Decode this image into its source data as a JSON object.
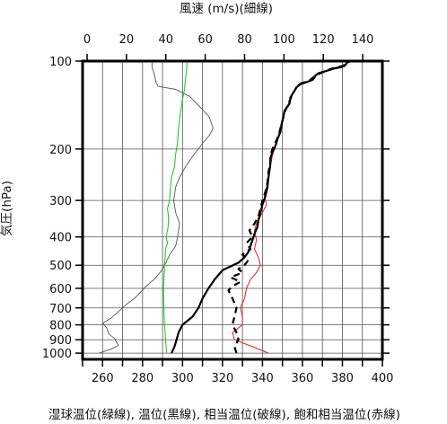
{
  "chart_data": {
    "type": "line",
    "top_axis_title": "風速 (m/s)(細線)",
    "left_axis_title": "気圧(hPa)",
    "bottom_axis_title": "湿球温位(緑線), 温位(黒線), 相当温位(破線), 飽和相当温位(赤線)",
    "y_axis": {
      "scale": "log",
      "range": [
        1050,
        100
      ],
      "ticks": [
        100,
        200,
        300,
        400,
        500,
        600,
        700,
        800,
        900,
        1000
      ]
    },
    "bottom_axis": {
      "range": [
        250,
        400
      ],
      "ticks": [
        260,
        280,
        300,
        320,
        340,
        360,
        380,
        400
      ],
      "grid_step": 10
    },
    "top_axis": {
      "range": [
        -2.3,
        150
      ],
      "ticks": [
        0,
        20,
        40,
        60,
        80,
        100,
        120,
        140
      ],
      "grid": false
    },
    "colors": {
      "wet_bulb_pt": "#22cc22",
      "pt": "#000000",
      "ept": "#000000",
      "sept": "#e02020",
      "wind": "#555555",
      "grid": "#555555"
    },
    "series": [
      {
        "id": "wet_bulb_pt",
        "axis": "bottom",
        "style": "solid",
        "points": [
          [
            292.0,
            1000
          ],
          [
            291.8,
            950
          ],
          [
            291.5,
            900
          ],
          [
            291.3,
            850
          ],
          [
            291.0,
            800
          ],
          [
            290.8,
            750
          ],
          [
            290.7,
            700
          ],
          [
            290.6,
            650
          ],
          [
            290.5,
            600
          ],
          [
            290.7,
            560
          ],
          [
            290.8,
            540
          ],
          [
            291.0,
            520
          ],
          [
            290.9,
            500
          ],
          [
            291.3,
            470
          ],
          [
            291.5,
            440
          ],
          [
            292.5,
            420
          ],
          [
            291.8,
            400
          ],
          [
            292.8,
            370
          ],
          [
            293.0,
            340
          ],
          [
            292.5,
            320
          ],
          [
            293.5,
            300
          ],
          [
            294.0,
            270
          ],
          [
            294.5,
            250
          ],
          [
            296.0,
            230
          ],
          [
            296.5,
            210
          ],
          [
            297.5,
            190
          ],
          [
            298.0,
            170
          ],
          [
            299.0,
            150
          ],
          [
            300.0,
            135
          ],
          [
            301.0,
            125
          ],
          [
            301.5,
            115
          ],
          [
            302.0,
            108
          ],
          [
            302.3,
            100
          ]
        ]
      },
      {
        "id": "pt",
        "axis": "bottom",
        "style": "solid",
        "points": [
          [
            294.5,
            1000
          ],
          [
            296,
            950
          ],
          [
            297,
            900
          ],
          [
            298,
            850
          ],
          [
            300,
            800
          ],
          [
            305,
            750
          ],
          [
            308,
            700
          ],
          [
            310,
            650
          ],
          [
            313,
            600
          ],
          [
            316,
            560
          ],
          [
            318,
            540
          ],
          [
            320,
            520
          ],
          [
            324,
            505
          ],
          [
            328,
            490
          ],
          [
            331,
            470
          ],
          [
            333,
            450
          ],
          [
            334,
            430
          ],
          [
            335,
            410
          ],
          [
            336,
            390
          ],
          [
            337.5,
            370
          ],
          [
            338,
            350
          ],
          [
            339,
            330
          ],
          [
            340,
            310
          ],
          [
            341.5,
            290
          ],
          [
            342.5,
            270
          ],
          [
            343,
            250
          ],
          [
            343.8,
            230
          ],
          [
            344,
            215
          ],
          [
            345,
            205
          ],
          [
            346.5,
            195
          ],
          [
            347.5,
            185
          ],
          [
            349,
            175
          ],
          [
            349.5,
            165
          ],
          [
            350.5,
            155
          ],
          [
            351,
            148
          ],
          [
            353.5,
            140
          ],
          [
            354,
            133
          ],
          [
            355.5,
            128
          ],
          [
            357,
            123
          ],
          [
            359,
            120
          ],
          [
            362,
            118
          ],
          [
            365,
            116
          ],
          [
            366,
            114
          ],
          [
            366.5,
            112
          ],
          [
            368,
            110
          ],
          [
            372,
            108
          ],
          [
            376,
            106
          ],
          [
            379,
            105
          ],
          [
            381,
            104
          ],
          [
            382.5,
            101
          ],
          [
            384,
            100
          ]
        ]
      },
      {
        "id": "ept",
        "axis": "bottom",
        "style": "dashed",
        "points": [
          [
            327,
            1000
          ],
          [
            326,
            950
          ],
          [
            328,
            900
          ],
          [
            327,
            850
          ],
          [
            325,
            800
          ],
          [
            326,
            750
          ],
          [
            327,
            700
          ],
          [
            325,
            650
          ],
          [
            323,
            610
          ],
          [
            325,
            590
          ],
          [
            329,
            570
          ],
          [
            324,
            550
          ],
          [
            330,
            530
          ],
          [
            328,
            515
          ],
          [
            331,
            500
          ],
          [
            333,
            480
          ],
          [
            330,
            460
          ],
          [
            334,
            440
          ],
          [
            332,
            420
          ],
          [
            335,
            400
          ],
          [
            333.5,
            380
          ],
          [
            336,
            360
          ],
          [
            338,
            340
          ],
          [
            339,
            320
          ],
          [
            340,
            300
          ],
          [
            341.5,
            280
          ],
          [
            342.5,
            260
          ],
          [
            343,
            240
          ],
          [
            344,
            220
          ],
          [
            344,
            210
          ],
          [
            345,
            200
          ],
          [
            346.5,
            190
          ],
          [
            348,
            180
          ],
          [
            349,
            170
          ],
          [
            350,
            160
          ],
          [
            351,
            150
          ],
          [
            353,
            140
          ],
          [
            355,
            130
          ],
          [
            358,
            120
          ],
          [
            363,
            117
          ],
          [
            366,
            113
          ],
          [
            369,
            110
          ],
          [
            373,
            107
          ],
          [
            377,
            105
          ],
          [
            380,
            104
          ],
          [
            382,
            102
          ],
          [
            384,
            100
          ]
        ]
      },
      {
        "id": "sept",
        "axis": "bottom",
        "style": "solid",
        "points": [
          [
            343,
            1000
          ],
          [
            335,
            950
          ],
          [
            326,
            900
          ],
          [
            325,
            850
          ],
          [
            330,
            800
          ],
          [
            330,
            750
          ],
          [
            329,
            700
          ],
          [
            331,
            650
          ],
          [
            332,
            600
          ],
          [
            334,
            560
          ],
          [
            337,
            530
          ],
          [
            339,
            500
          ],
          [
            338,
            470
          ],
          [
            336,
            440
          ],
          [
            337,
            410
          ],
          [
            336,
            380
          ],
          [
            337,
            360
          ],
          [
            340,
            330
          ],
          [
            342,
            310
          ],
          [
            341,
            290
          ],
          [
            342,
            270
          ],
          [
            343,
            250
          ],
          [
            344,
            230
          ],
          [
            345,
            210
          ],
          [
            346,
            200
          ],
          [
            347,
            190
          ],
          [
            348,
            180
          ],
          [
            349,
            170
          ],
          [
            350,
            160
          ],
          [
            351,
            150
          ],
          [
            353,
            140
          ],
          [
            355,
            130
          ],
          [
            358,
            120
          ],
          [
            363,
            117
          ],
          [
            366,
            113
          ],
          [
            369,
            110
          ],
          [
            373,
            107
          ],
          [
            377,
            105
          ],
          [
            380,
            104
          ],
          [
            382,
            102
          ],
          [
            384,
            100
          ]
        ]
      },
      {
        "id": "wind",
        "axis": "top",
        "style": "solid",
        "points": [
          [
            6,
            1000
          ],
          [
            12,
            970
          ],
          [
            16,
            940
          ],
          [
            15,
            920
          ],
          [
            14,
            890
          ],
          [
            11,
            860
          ],
          [
            10,
            820
          ],
          [
            8,
            790
          ],
          [
            12,
            760
          ],
          [
            16,
            720
          ],
          [
            20,
            680
          ],
          [
            24,
            650
          ],
          [
            27,
            620
          ],
          [
            30,
            590
          ],
          [
            34,
            560
          ],
          [
            38,
            520
          ],
          [
            40,
            490
          ],
          [
            42,
            460
          ],
          [
            45,
            430
          ],
          [
            46,
            400
          ],
          [
            47,
            360
          ],
          [
            45,
            330
          ],
          [
            44,
            300
          ],
          [
            45,
            270
          ],
          [
            47,
            250
          ],
          [
            50,
            230
          ],
          [
            54,
            210
          ],
          [
            59,
            190
          ],
          [
            62,
            180
          ],
          [
            64,
            170
          ],
          [
            62,
            155
          ],
          [
            58,
            145
          ],
          [
            52,
            132
          ],
          [
            45,
            125
          ],
          [
            36,
            122
          ],
          [
            35,
            118
          ],
          [
            34,
            110
          ],
          [
            33,
            105
          ],
          [
            33,
            100
          ]
        ]
      }
    ]
  }
}
